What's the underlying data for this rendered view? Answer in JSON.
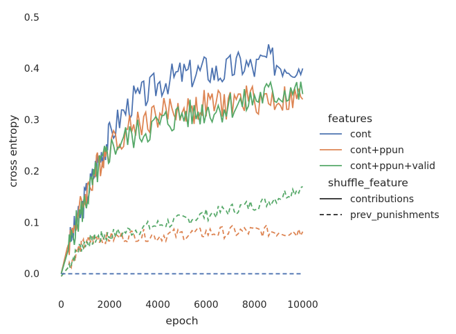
{
  "chart_data": {
    "type": "line",
    "xlabel": "epoch",
    "ylabel": "cross entropy",
    "xlim": [
      -300,
      10300
    ],
    "ylim": [
      -0.03,
      0.52
    ],
    "x_ticks": [
      0,
      2000,
      4000,
      6000,
      8000,
      10000
    ],
    "x_tick_labels": [
      "0",
      "2000",
      "4000",
      "6000",
      "8000",
      "10000"
    ],
    "y_ticks": [
      0.0,
      0.1,
      0.2,
      0.3,
      0.4,
      0.5
    ],
    "y_tick_labels": [
      "0.0",
      "0.1",
      "0.2",
      "0.3",
      "0.4",
      "0.5"
    ],
    "grid": false,
    "legend_position": "right",
    "legend": {
      "hue_title": "features",
      "hue_entries": [
        {
          "label": "cont",
          "color": "#4c72b0"
        },
        {
          "label": "cont+ppun",
          "color": "#dd8452"
        },
        {
          "label": "cont+ppun+valid",
          "color": "#55a868"
        }
      ],
      "style_title": "shuffle_feature",
      "style_entries": [
        {
          "label": "contributions",
          "dash": "solid"
        },
        {
          "label": "prev_punishments",
          "dash": "dashed"
        }
      ]
    },
    "x": [
      0,
      250,
      500,
      750,
      1000,
      1250,
      1500,
      1750,
      2000,
      2500,
      3000,
      3500,
      4000,
      4500,
      5000,
      5500,
      6000,
      6500,
      7000,
      7500,
      8000,
      8500,
      9000,
      9500,
      10000
    ],
    "series": [
      {
        "name": "cont",
        "hue": "cont",
        "style": "contributions",
        "color": "#4c72b0",
        "dash": "solid",
        "values": [
          0.0,
          0.05,
          0.08,
          0.11,
          0.15,
          0.18,
          0.22,
          0.24,
          0.27,
          0.31,
          0.34,
          0.35,
          0.37,
          0.38,
          0.39,
          0.39,
          0.4,
          0.39,
          0.4,
          0.41,
          0.4,
          0.42,
          0.41,
          0.41,
          0.4
        ]
      },
      {
        "name": "cont+ppun",
        "hue": "cont+ppun",
        "style": "contributions",
        "color": "#dd8452",
        "dash": "solid",
        "values": [
          0.0,
          0.05,
          0.09,
          0.12,
          0.15,
          0.18,
          0.21,
          0.23,
          0.25,
          0.27,
          0.29,
          0.3,
          0.31,
          0.32,
          0.32,
          0.32,
          0.33,
          0.33,
          0.33,
          0.34,
          0.34,
          0.34,
          0.34,
          0.34,
          0.34
        ]
      },
      {
        "name": "cont+ppun+valid",
        "hue": "cont+ppun+valid",
        "style": "contributions",
        "color": "#55a868",
        "dash": "solid",
        "values": [
          0.0,
          0.04,
          0.08,
          0.11,
          0.14,
          0.17,
          0.2,
          0.22,
          0.24,
          0.26,
          0.27,
          0.28,
          0.29,
          0.3,
          0.31,
          0.31,
          0.32,
          0.32,
          0.33,
          0.33,
          0.34,
          0.35,
          0.35,
          0.36,
          0.35
        ]
      },
      {
        "name": "cont+ppun",
        "hue": "cont+ppun",
        "style": "prev_punishments",
        "color": "#dd8452",
        "dash": "dashed",
        "values": [
          -0.005,
          0.01,
          0.03,
          0.05,
          0.06,
          0.065,
          0.07,
          0.07,
          0.07,
          0.072,
          0.075,
          0.075,
          0.073,
          0.076,
          0.077,
          0.078,
          0.08,
          0.08,
          0.082,
          0.082,
          0.083,
          0.083,
          0.082,
          0.083,
          0.082
        ]
      },
      {
        "name": "cont+ppun+valid",
        "hue": "cont+ppun+valid",
        "style": "prev_punishments",
        "color": "#55a868",
        "dash": "dashed",
        "values": [
          -0.005,
          0.01,
          0.03,
          0.05,
          0.06,
          0.065,
          0.07,
          0.073,
          0.075,
          0.08,
          0.085,
          0.09,
          0.095,
          0.1,
          0.105,
          0.11,
          0.115,
          0.12,
          0.125,
          0.13,
          0.135,
          0.14,
          0.15,
          0.16,
          0.17
        ]
      },
      {
        "name": "cont",
        "hue": "cont",
        "style": "prev_punishments",
        "color": "#4c72b0",
        "dash": "dashed",
        "values": [
          0.0,
          0.0,
          0.0,
          0.0,
          0.0,
          0.0,
          0.0,
          0.0,
          0.0,
          0.0,
          0.0,
          0.0,
          0.0,
          0.0,
          0.0,
          0.0,
          0.0,
          0.0,
          0.0,
          0.0,
          0.0,
          0.0,
          0.0,
          0.0,
          0.0
        ]
      }
    ]
  }
}
